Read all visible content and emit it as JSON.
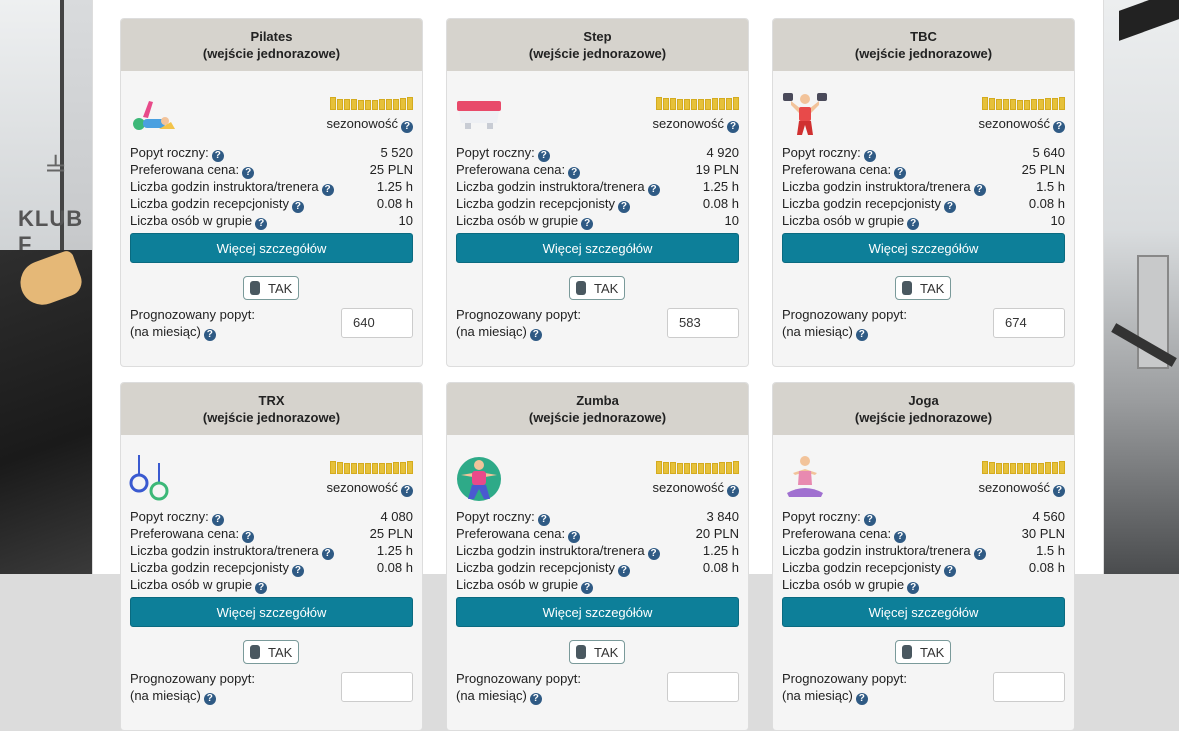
{
  "q_mark": "?",
  "season_label": "sezonowość",
  "details_label": "Więcej szczegółów",
  "toggle_label": "TAK",
  "forecast_label_1": "Prognozowany popyt:",
  "forecast_label_2": "(na miesiąc)",
  "row_labels": {
    "demand": "Popyt roczny:",
    "price": "Preferowana cena:",
    "instructor": "Liczba godzin instruktora/trenera",
    "reception": "Liczba godzin recepcjonisty",
    "group": "Liczba osób w grupie"
  },
  "background": {
    "brand_text": "KLUB F"
  },
  "colors": {
    "accent": "#0d7f99",
    "season_bar": "#e6c13a",
    "help_icon": "#2f5a84"
  },
  "cards": [
    {
      "title": "Pilates",
      "subtitle": "(wejście jednorazowe)",
      "icon": "pilates-icon",
      "demand": "5 520",
      "price": "25 PLN",
      "instructor": "1.25 h",
      "reception": "0.08 h",
      "group": "10",
      "forecast": "640",
      "season": [
        1,
        0.8,
        0.7,
        0.7,
        0.6,
        0.6,
        0.6,
        0.7,
        0.8,
        0.8,
        0.9,
        1
      ]
    },
    {
      "title": "Step",
      "subtitle": "(wejście jednorazowe)",
      "icon": "step-platform-icon",
      "demand": "4 920",
      "price": "19 PLN",
      "instructor": "1.25 h",
      "reception": "0.08 h",
      "group": "10",
      "forecast": "583",
      "season": [
        1,
        0.9,
        0.9,
        0.8,
        0.7,
        0.7,
        0.7,
        0.8,
        0.9,
        0.9,
        0.9,
        1
      ]
    },
    {
      "title": "TBC",
      "subtitle": "(wejście jednorazowe)",
      "icon": "dumbbells-icon",
      "demand": "5 640",
      "price": "25 PLN",
      "instructor": "1.5 h",
      "reception": "0.08 h",
      "group": "10",
      "forecast": "674",
      "season": [
        1,
        0.9,
        0.8,
        0.7,
        0.7,
        0.6,
        0.6,
        0.7,
        0.8,
        0.9,
        0.9,
        1
      ]
    },
    {
      "title": "TRX",
      "subtitle": "(wejście jednorazowe)",
      "icon": "rings-icon",
      "demand": "4 080",
      "price": "25 PLN",
      "instructor": "1.25 h",
      "reception": "0.08 h",
      "group": null,
      "forecast": null,
      "season": [
        1,
        0.9,
        0.8,
        0.8,
        0.7,
        0.7,
        0.7,
        0.8,
        0.8,
        0.9,
        0.9,
        1
      ]
    },
    {
      "title": "Zumba",
      "subtitle": "(wejście jednorazowe)",
      "icon": "zumba-icon",
      "demand": "3 840",
      "price": "20 PLN",
      "instructor": "1.25 h",
      "reception": "0.08 h",
      "group": null,
      "forecast": null,
      "season": [
        1,
        0.9,
        0.9,
        0.8,
        0.8,
        0.7,
        0.7,
        0.8,
        0.8,
        0.9,
        0.9,
        1
      ]
    },
    {
      "title": "Joga",
      "subtitle": "(wejście jednorazowe)",
      "icon": "yoga-icon",
      "demand": "4 560",
      "price": "30 PLN",
      "instructor": "1.5 h",
      "reception": "0.08 h",
      "group": null,
      "forecast": null,
      "season": [
        1,
        0.9,
        0.8,
        0.8,
        0.7,
        0.7,
        0.7,
        0.8,
        0.8,
        0.9,
        0.9,
        1
      ]
    }
  ]
}
